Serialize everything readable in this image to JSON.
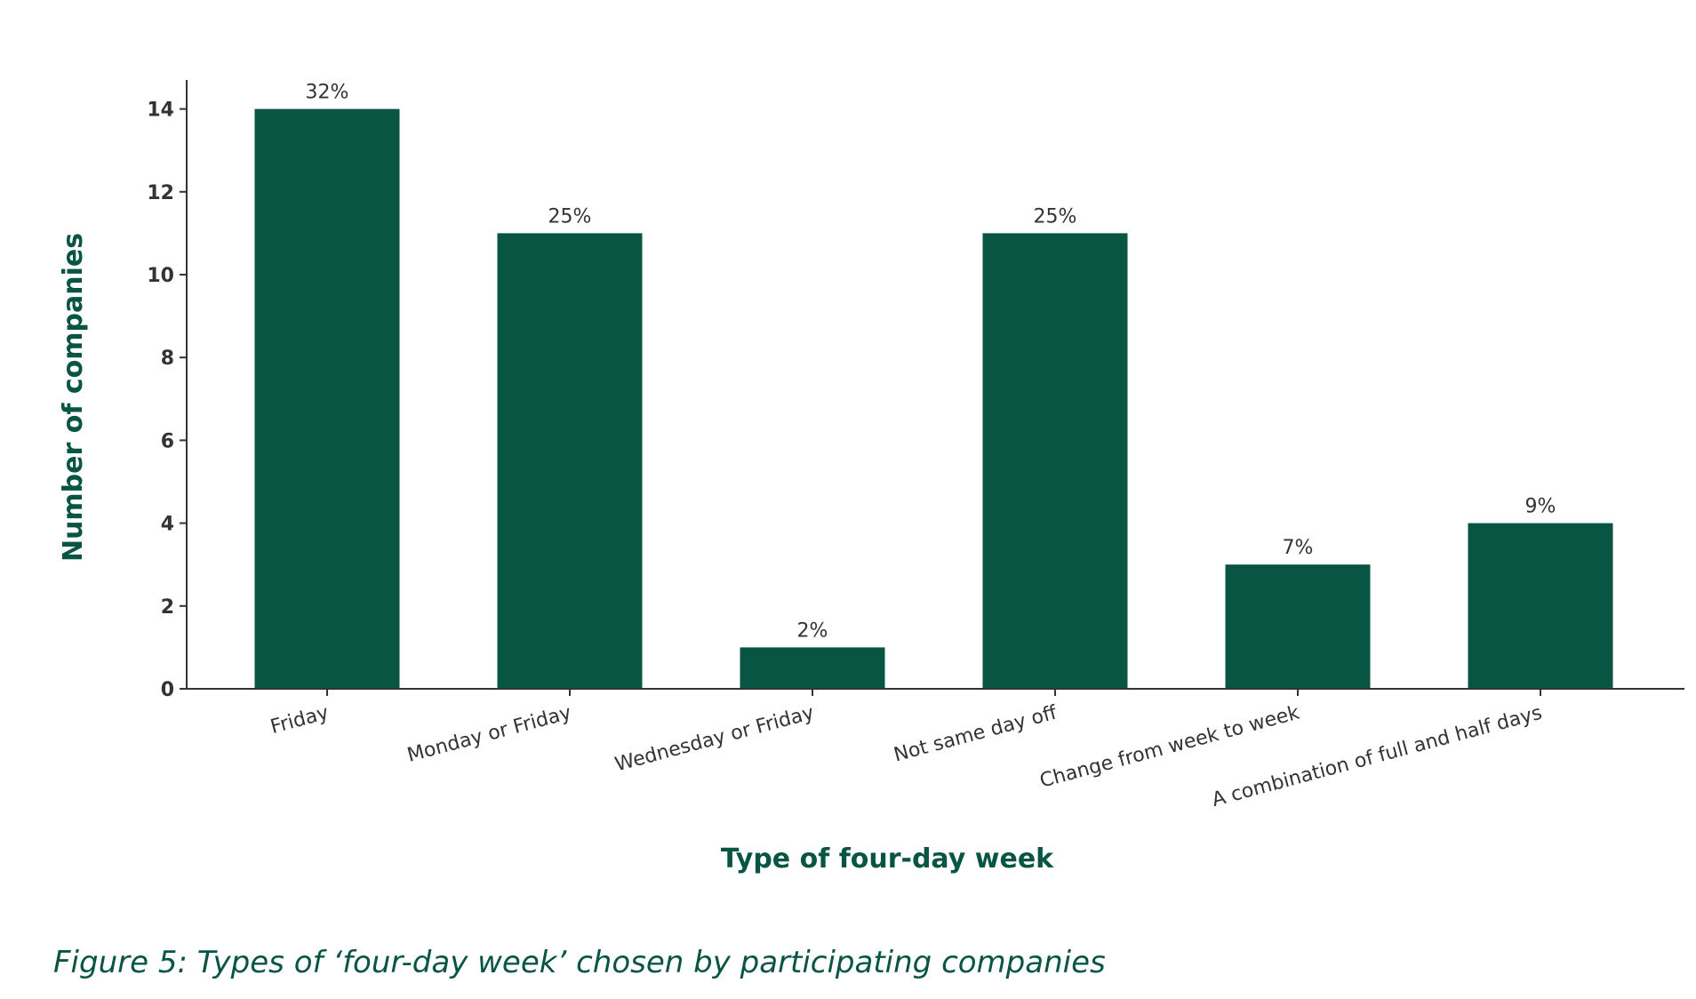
{
  "chart_data": {
    "type": "bar",
    "categories": [
      "Friday",
      "Monday or Friday",
      "Wednesday or Friday",
      "Not same day off",
      "Change from week to week",
      "A combination of full and half days"
    ],
    "values": [
      14,
      11,
      1,
      11,
      3,
      4
    ],
    "data_labels": [
      "32%",
      "25%",
      "2%",
      "25%",
      "7%",
      "9%"
    ],
    "xlabel": "Type of four-day week",
    "ylabel": "Number of companies",
    "yticks": [
      "0",
      "2",
      "4",
      "6",
      "8",
      "10",
      "12",
      "14"
    ],
    "ylim": [
      0,
      14.7
    ],
    "grid": false,
    "legend": "none",
    "caption": "Figure 5: Types of ‘four-day week’ chosen by participating companies",
    "colors": {
      "bar": "#085544",
      "accent": "#085544",
      "axis": "#333333",
      "text": "#333333"
    }
  }
}
